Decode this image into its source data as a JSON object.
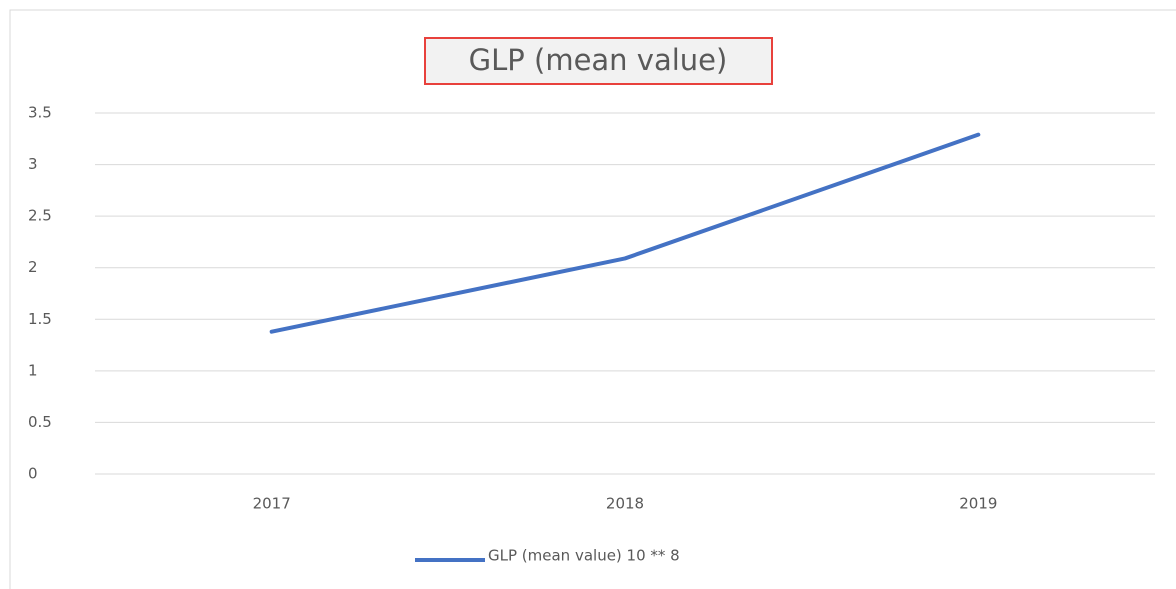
{
  "chart_data": {
    "type": "line",
    "title": "GLP (mean value)",
    "categories": [
      "2017",
      "2018",
      "2019"
    ],
    "series": [
      {
        "name": "GLP (mean value) 10 ** 8",
        "color": "#4472c4",
        "values": [
          1.38,
          2.09,
          3.29
        ]
      }
    ],
    "ylim": [
      0,
      3.5
    ],
    "yticks": [
      0,
      0.5,
      1,
      1.5,
      2,
      2.5,
      3,
      3.5
    ],
    "grid": true,
    "legend": "bottom"
  }
}
